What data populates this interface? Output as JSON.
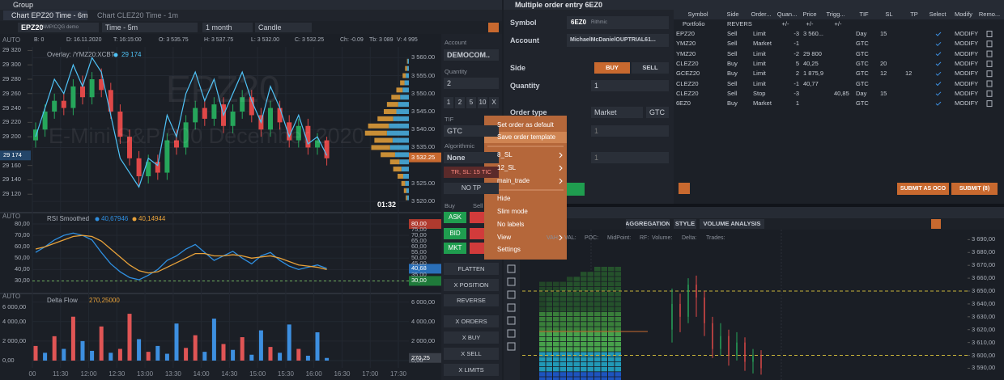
{
  "left_window": {
    "title": "Group",
    "tabs": [
      "Chart EPZ20 Time - 6m",
      "Chart CLEZ20 Time - 1m"
    ],
    "toolbar": {
      "symbol": "EPZ20",
      "feed": "AMP/CQG demo",
      "aggregation": "Time - 5m",
      "period": "1 month",
      "style": "Candle",
      "auto": "AUTO"
    },
    "info": [
      "B: 0",
      "D: 16.11.2020",
      "T: 16:15:00",
      "O: 3 535.75",
      "H: 3 537.75",
      "L: 3 532.00",
      "C: 3 532.25",
      "Ch: -0.09",
      "Tb: 3 089",
      "V: 4 995"
    ],
    "watermark": "EPZ20",
    "watermark_sub": "E-Mini S&P 500 December 2020",
    "timer": "01:32",
    "x_labels": [
      "00",
      "11:30",
      "12:00",
      "12:30",
      "13:00",
      "13:30",
      "14:00",
      "14:30",
      "15:00",
      "15:30",
      "16:00",
      "16:30",
      "17:00",
      "17:30"
    ],
    "order_panel": {
      "account_label": "Account",
      "account": "DEMOCOM..",
      "quantity_label": "Quantity",
      "quantity": "2",
      "quick": [
        "1",
        "2",
        "5",
        "10",
        "X"
      ],
      "tif_label": "TIF",
      "tif": "GTC",
      "algo_label": "Algorithmic",
      "algo": "None",
      "sl": "TR, SL: 15 TIC",
      "tp": "NO TP",
      "buy_label": "Buy",
      "sell_label": "Sell",
      "ask": "ASK",
      "bid": "BID",
      "mkt": "MKT",
      "buttons": [
        "FLATTEN",
        "X POSITION",
        "REVERSE",
        "X ORDERS",
        "X BUY",
        "X SELL",
        "X LIMITS"
      ]
    },
    "context_menu": {
      "highlighted": 1,
      "items": [
        {
          "label": "Set order as default",
          "submenu": false
        },
        {
          "label": "Save order template",
          "submenu": false
        },
        {
          "label": "8_SL",
          "submenu": true
        },
        {
          "label": "12_SL",
          "submenu": true
        },
        {
          "label": "main_trade",
          "submenu": true
        },
        {
          "label": "Hide",
          "submenu": false
        },
        {
          "label": "Slim mode",
          "submenu": false
        },
        {
          "label": "No labels",
          "submenu": false
        },
        {
          "label": "View",
          "submenu": true
        },
        {
          "label": "Settings",
          "submenu": false
        }
      ]
    }
  },
  "order_entry": {
    "title": "Multiple order entry 6EZ0",
    "symbol_label": "Symbol",
    "symbol": "6EZ0",
    "symbol_feed": "Rithmic",
    "account_label": "Account",
    "account": "MichaelMcDanielOUPTRIAL61...",
    "side_label": "Side",
    "buy": "BUY",
    "sell": "SELL",
    "quantity_label": "Quantity",
    "quantity": "1",
    "order_type_label": "Order type",
    "order_type": "Market",
    "tif": "GTC",
    "rows": [
      "1",
      "1"
    ],
    "submit_oco": "SUBMIT AS OCO",
    "submit": "SUBMIT (8)"
  },
  "orders_table": {
    "headers": [
      "Symbol",
      "Side",
      "Order...",
      "Quan...",
      "Price",
      "Trigg...",
      "TIF",
      "SL",
      "TP",
      "Select",
      "Modify",
      "Remo..."
    ],
    "portfolio": [
      "Portfolio",
      "REVERS",
      "+/-",
      "+/-",
      "+/-"
    ],
    "rows": [
      [
        "EPZ20",
        "Sell",
        "Limit",
        "-3",
        "3 560...",
        null,
        "Day",
        "15",
        null,
        "MODIFY"
      ],
      [
        "YMZ20",
        "Sell",
        "Market",
        "-1",
        null,
        null,
        "GTC",
        null,
        null,
        "MODIFY"
      ],
      [
        "YMZ20",
        "Sell",
        "Limit",
        "-2",
        "29 800",
        null,
        "GTC",
        null,
        null,
        "MODIFY"
      ],
      [
        "CLEZ20",
        "Buy",
        "Limit",
        "5",
        "40,25",
        null,
        "GTC",
        "20",
        null,
        "MODIFY"
      ],
      [
        "GCEZ20",
        "Buy",
        "Limit",
        "2",
        "1 875,9",
        null,
        "GTC",
        "12",
        "12",
        "MODIFY"
      ],
      [
        "CLEZ20",
        "Sell",
        "Limit",
        "-1",
        "40,77",
        null,
        "GTC",
        null,
        null,
        "MODIFY"
      ],
      [
        "CLEZ20",
        "Sell",
        "Stop",
        "-3",
        null,
        "40,85",
        "Day",
        "15",
        null,
        "MODIFY"
      ],
      [
        "6EZ0",
        "Buy",
        "Market",
        "1",
        null,
        null,
        "GTC",
        null,
        null,
        "MODIFY"
      ]
    ]
  },
  "cluster_toolbar": [
    "AGGREGATION",
    "STYLE",
    "VOLUME ANALYSIS"
  ],
  "chart_data": [
    {
      "type": "candlestick",
      "up_color": "#26a65b",
      "down_color": "#e04848",
      "ylim": [
        3518,
        3563
      ],
      "yticks": [
        {
          "value": 3560,
          "label": "3 560.00"
        },
        {
          "value": 3555,
          "label": "3 555.00"
        },
        {
          "value": 3550,
          "label": "3 550.00"
        },
        {
          "value": 3545,
          "label": "3 545.00"
        },
        {
          "value": 3540,
          "label": "3 540.00"
        },
        {
          "value": 3535,
          "label": "3 535.00"
        },
        {
          "value": 3525,
          "label": "3 525.00"
        },
        {
          "value": 3520,
          "label": "3 520.00"
        }
      ],
      "y2lim": [
        29100,
        29325
      ],
      "y2ticks": [
        {
          "value": 29320,
          "label": "29 320"
        },
        {
          "value": 29300,
          "label": "29 300"
        },
        {
          "value": 29280,
          "label": "29 280"
        },
        {
          "value": 29260,
          "label": "29 260"
        },
        {
          "value": 29240,
          "label": "29 240"
        },
        {
          "value": 29220,
          "label": "29 220"
        },
        {
          "value": 29200,
          "label": "29 200"
        },
        {
          "value": 29160,
          "label": "29 160"
        },
        {
          "value": 29140,
          "label": "29 140"
        },
        {
          "value": 29120,
          "label": "29 120"
        }
      ],
      "open": [
        3537,
        3540,
        3545,
        3548,
        3546,
        3552,
        3549,
        3554,
        3551,
        3545,
        3538,
        3532,
        3527,
        3531,
        3528,
        3537,
        3535,
        3542,
        3546,
        3543,
        3547,
        3541,
        3545,
        3549,
        3544,
        3540,
        3546,
        3542,
        3537,
        3541,
        3535,
        3537
      ],
      "high": [
        3542,
        3547,
        3550,
        3550,
        3554,
        3555,
        3556,
        3557,
        3553,
        3547,
        3540,
        3534,
        3533,
        3533,
        3539,
        3540,
        3544,
        3548,
        3548,
        3549,
        3549,
        3547,
        3551,
        3551,
        3546,
        3548,
        3548,
        3544,
        3543,
        3543,
        3539,
        3538
      ],
      "low": [
        3535,
        3538,
        3543,
        3544,
        3544,
        3547,
        3547,
        3549,
        3543,
        3536,
        3530,
        3524,
        3525,
        3526,
        3526,
        3533,
        3533,
        3540,
        3541,
        3541,
        3539,
        3539,
        3543,
        3542,
        3538,
        3538,
        3540,
        3535,
        3535,
        3533,
        3533,
        3530
      ],
      "close": [
        3540,
        3545,
        3548,
        3546,
        3552,
        3549,
        3554,
        3551,
        3545,
        3538,
        3532,
        3527,
        3531,
        3528,
        3537,
        3535,
        3542,
        3546,
        3543,
        3547,
        3541,
        3545,
        3549,
        3544,
        3540,
        3546,
        3542,
        3537,
        3541,
        3535,
        3537,
        3532
      ],
      "series": [
        {
          "name": "Overlay: /YMZ20:XCBT",
          "color": "#4fc3f7",
          "axis": "y2",
          "values": [
            29200,
            29240,
            29280,
            29260,
            29300,
            29270,
            29310,
            29290,
            29230,
            29170,
            29150,
            29130,
            29170,
            29160,
            29230,
            29200,
            29260,
            29290,
            29250,
            29280,
            29230,
            29260,
            29290,
            29250,
            29220,
            29270,
            29240,
            29200,
            29230,
            29190,
            29200,
            29174
          ]
        }
      ],
      "last_price": {
        "value": 3532.25,
        "label": "3 532.25"
      },
      "overlay_last": {
        "value": 29174,
        "label": "29 174"
      },
      "volume_profile": {
        "xlim": [
          0,
          80
        ],
        "prices": [
          3521,
          3523,
          3525,
          3527,
          3529,
          3531,
          3533,
          3535,
          3537,
          3539,
          3541,
          3543,
          3545,
          3547,
          3549,
          3551,
          3553,
          3555,
          3557,
          3559
        ],
        "series": [
          {
            "color": "#4ab4e6",
            "values": [
              3,
              4,
              6,
              9,
              12,
              15,
              22,
              30,
              26,
              35,
              32,
              25,
              20,
              17,
              14,
              10,
              7,
              5,
              3,
              2
            ]
          },
          {
            "color": "#e8a23a",
            "values": [
              2,
              4,
              6,
              9,
              13,
              15,
              23,
              30,
              29,
              35,
              33,
              25,
              20,
              18,
              14,
              10,
              7,
              5,
              3,
              1
            ]
          }
        ]
      }
    },
    {
      "type": "line",
      "title": "RSI Smoothed",
      "auto": "AUTO",
      "ylim": [
        22.5,
        85
      ],
      "yticks": [
        {
          "value": 80,
          "label": "80,00"
        },
        {
          "value": 70,
          "label": "70,00"
        },
        {
          "value": 60,
          "label": "60,00"
        },
        {
          "value": 50,
          "label": "50,00"
        },
        {
          "value": 40,
          "label": "40,00"
        },
        {
          "value": 30,
          "label": "30,00"
        }
      ],
      "y2lim": [
        22.5,
        85
      ],
      "y2ticks": [
        {
          "value": 75,
          "label": "75,00"
        },
        {
          "value": 70,
          "label": "70,00"
        },
        {
          "value": 65,
          "label": "65,00"
        },
        {
          "value": 60,
          "label": "60,00"
        },
        {
          "value": 55,
          "label": "55,00"
        },
        {
          "value": 50,
          "label": "50,00"
        },
        {
          "value": 45,
          "label": "45,00"
        },
        {
          "value": 35,
          "label": "35,00"
        }
      ],
      "markers": [
        {
          "value": 80,
          "label": "80,00",
          "color": "#b03a2e"
        },
        {
          "value": 40.68,
          "label": "40,68",
          "color": "#2a6fb8"
        },
        {
          "value": 30,
          "label": "30,00",
          "color": "#1f7a3a"
        }
      ],
      "level": {
        "value": 30,
        "color": "#6fae5f"
      },
      "series": [
        {
          "color": "#2f8fe0",
          "last_label": "40,67946",
          "values": [
            55,
            60,
            66,
            70,
            72,
            70,
            66,
            55,
            45,
            38,
            33,
            31,
            35,
            40,
            48,
            52,
            58,
            62,
            55,
            48,
            52,
            56,
            50,
            45,
            52,
            55,
            48,
            43,
            40,
            42,
            44,
            41
          ]
        },
        {
          "color": "#e8a23a",
          "last_label": "40,14944",
          "values": [
            58,
            60,
            63,
            66,
            69,
            70,
            69,
            65,
            58,
            51,
            44,
            39,
            37,
            38,
            42,
            46,
            50,
            54,
            54,
            52,
            52,
            53,
            52,
            50,
            51,
            52,
            50,
            47,
            44,
            43,
            42,
            40
          ]
        }
      ]
    },
    {
      "type": "bar",
      "title": "Delta Flow",
      "last_label": "270,25000",
      "auto": "AUTO",
      "ylim": [
        0,
        6300
      ],
      "yticks": [
        {
          "value": 6000,
          "label": "6 000,00"
        },
        {
          "value": 4000,
          "label": "4 000,00"
        },
        {
          "value": 2000,
          "label": "2 000,00"
        },
        {
          "value": 0,
          "label": "0,00"
        }
      ],
      "y2lim": [
        0,
        6300
      ],
      "y2ticks": [
        {
          "value": 6000,
          "label": "6 000,00"
        },
        {
          "value": 4000,
          "label": "4 000,00"
        },
        {
          "value": 2000,
          "label": "2 000,00"
        },
        {
          "value": 0,
          "label": "0,00"
        }
      ],
      "marker": {
        "value": 270.25,
        "label": "270,25",
        "color": "#3a3f48"
      },
      "values": [
        1500,
        800,
        2500,
        1200,
        4500,
        2000,
        1000,
        3500,
        800,
        1200,
        4800,
        2200,
        900,
        1500,
        700,
        3800,
        1300,
        2600,
        900,
        4300,
        1700,
        1100,
        2400,
        600,
        3100,
        1400,
        800,
        3700,
        1200,
        500,
        2900,
        270.25
      ],
      "colors": [
        "#e05555",
        "#3d8fe0",
        "#e05555",
        "#3d8fe0",
        "#e05555",
        "#3d8fe0",
        "#3d8fe0",
        "#e05555",
        "#3d8fe0",
        "#e05555",
        "#e05555",
        "#3d8fe0",
        "#e05555",
        "#3d8fe0",
        "#3d8fe0",
        "#3d8fe0",
        "#e05555",
        "#e05555",
        "#3d8fe0",
        "#3d8fe0",
        "#e05555",
        "#3d8fe0",
        "#e05555",
        "#3d8fe0",
        "#3d8fe0",
        "#e05555",
        "#3d8fe0",
        "#3d8fe0",
        "#e05555",
        "#3d8fe0",
        "#3d8fe0",
        "#3d8fe0"
      ]
    },
    {
      "type": "candlestick",
      "up_color": "#26a65b",
      "down_color": "#e04848",
      "info": [
        "VAH:",
        "VAL:",
        "POC:",
        "MidPoint:",
        "RF:",
        "Volume:",
        "Delta:",
        "Trades:"
      ],
      "ylim": [
        3584,
        3694
      ],
      "yticks": [
        {
          "value": 3690,
          "label": "3 690,00"
        },
        {
          "value": 3680,
          "label": "3 680,00"
        },
        {
          "value": 3670,
          "label": "3 670,00"
        },
        {
          "value": 3660,
          "label": "3 660,00"
        },
        {
          "value": 3650,
          "label": "3 650,00"
        },
        {
          "value": 3640,
          "label": "3 640,00"
        },
        {
          "value": 3630,
          "label": "3 630,00"
        },
        {
          "value": 3620,
          "label": "3 620,00"
        },
        {
          "value": 3610,
          "label": "3 610,00"
        },
        {
          "value": 3600,
          "label": "3 600,00"
        },
        {
          "value": 3590,
          "label": "3 590,00"
        }
      ],
      "levels": [
        3650,
        3600
      ],
      "level_color": "#c8b43a",
      "open": [
        3620,
        3640,
        3630,
        3655,
        3645,
        3625,
        3605,
        3615,
        3600,
        3610,
        3595,
        3600
      ],
      "high": [
        3652,
        3648,
        3660,
        3662,
        3650,
        3630,
        3625,
        3620,
        3618,
        3614,
        3605,
        3604
      ],
      "low": [
        3610,
        3618,
        3625,
        3630,
        3615,
        3598,
        3600,
        3592,
        3596,
        3588,
        3586,
        3585
      ],
      "close": [
        3640,
        3630,
        3655,
        3645,
        3625,
        3605,
        3615,
        3600,
        3610,
        3595,
        3600,
        3590
      ]
    }
  ]
}
